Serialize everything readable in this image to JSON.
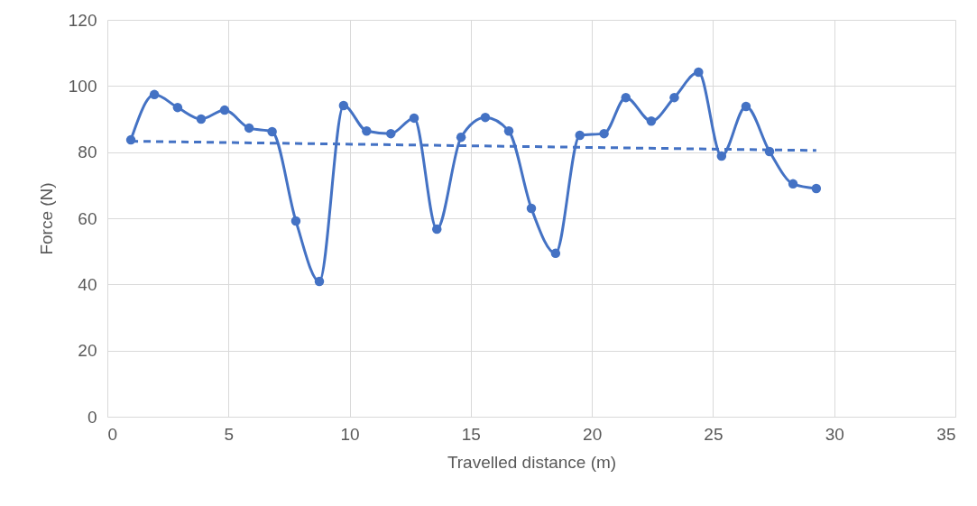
{
  "chart_data": {
    "type": "line",
    "xlabel": "Travelled distance (m)",
    "ylabel": "Force (N)",
    "xlim": [
      0,
      35
    ],
    "xticks": [
      0,
      5,
      10,
      15,
      20,
      25,
      30,
      35
    ],
    "ylim": [
      0,
      120
    ],
    "yticks": [
      0,
      20,
      40,
      60,
      80,
      100,
      120
    ],
    "grid": true,
    "series": [
      {
        "color": "#4472c4",
        "marker": "circle",
        "line_style": "solid",
        "x": [
          0.97,
          1.94,
          2.9,
          3.87,
          4.84,
          5.85,
          6.8,
          7.78,
          8.75,
          9.75,
          10.7,
          11.7,
          12.66,
          13.6,
          14.6,
          15.6,
          16.57,
          17.5,
          18.5,
          19.5,
          20.5,
          21.4,
          22.45,
          23.4,
          24.4,
          25.35,
          26.36,
          27.33,
          28.3,
          29.26
        ],
        "values": [
          83.7,
          97.4,
          93.5,
          90,
          92.7,
          87.3,
          86.2,
          59.2,
          40.9,
          94.1,
          86.4,
          85.6,
          90.3,
          56.7,
          84.5,
          90.5,
          86.4,
          63,
          49.4,
          85.1,
          85.6,
          96.5,
          89.4,
          96.5,
          104.2,
          78.8,
          93.8,
          80.2,
          70.4,
          69
        ]
      },
      {
        "type": "line",
        "color": "#4472c4",
        "marker": "none",
        "line_style": "dashed",
        "x": [
          0.97,
          29.26
        ],
        "values": [
          83.3,
          80.5
        ]
      }
    ]
  }
}
